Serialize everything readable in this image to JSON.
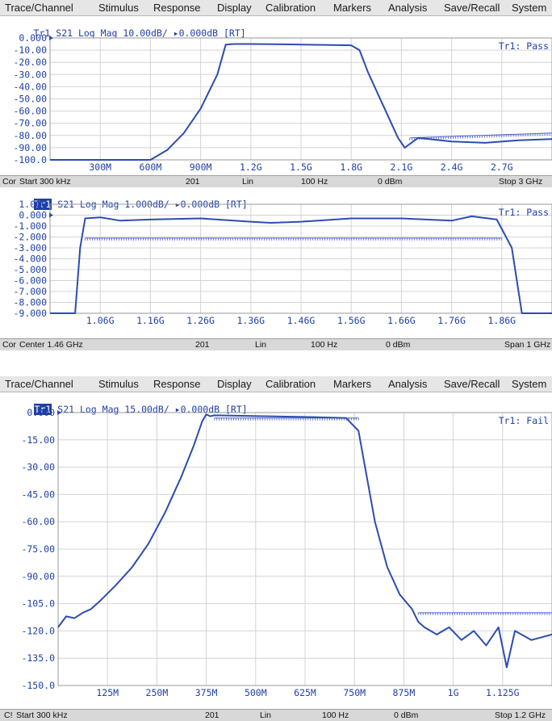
{
  "menu": [
    "Trace/Channel",
    "Stimulus",
    "Response",
    "Display",
    "Calibration",
    "Markers",
    "Analysis",
    "Save/Recall",
    "System"
  ],
  "colors": {
    "trace": "#2c4cb0",
    "limit": "#5060c8",
    "text": "#2040a8",
    "grid": "#d4d4d4",
    "status_bg": "#d8d8d8",
    "menu_bg": "#e6e6e6"
  },
  "screens": [
    {
      "menu": [
        "Trace/Channel",
        "Stimulus",
        "Response",
        "Display",
        "Calibration",
        "Markers",
        "Analysis",
        "Save/Recall",
        "System"
      ],
      "panels": [
        {
          "trace_id": "Tr1",
          "header": "S21 Log Mag 10.00dB/ ▸0.000dB [RT]",
          "result": "Tr1: Pass",
          "y_ticks": [
            "0.000",
            "-10.00",
            "-20.00",
            "-30.00",
            "-40.00",
            "-50.00",
            "-60.00",
            "-70.00",
            "-80.00",
            "-90.00",
            "-100.0"
          ],
          "x_ticks": [
            "300M",
            "600M",
            "900M",
            "1.2G",
            "1.5G",
            "1.8G",
            "2.1G",
            "2.4G",
            "2.7G"
          ],
          "status": {
            "cal": "Cor",
            "start": "Start 300 kHz",
            "points": "201",
            "sweep": "Lin",
            "ifbw": "100 Hz",
            "power": "0 dBm",
            "stop": "Stop 3 GHz"
          }
        },
        {
          "trace_id": "Tr1",
          "header": "S21 Log Mag 1.000dB/ ▸0.000dB [RT]",
          "result": "Tr1: Pass",
          "y_ticks": [
            "1.000",
            "0.000",
            "-1.000",
            "-2.000",
            "-3.000",
            "-4.000",
            "-5.000",
            "-6.000",
            "-7.000",
            "-8.000",
            "-9.000"
          ],
          "x_ticks": [
            "1.06G",
            "1.16G",
            "1.26G",
            "1.36G",
            "1.46G",
            "1.56G",
            "1.66G",
            "1.76G",
            "1.86G"
          ],
          "status": {
            "cal": "Cor",
            "start": "Center 1.46 GHz",
            "points": "201",
            "sweep": "Lin",
            "ifbw": "100 Hz",
            "power": "0 dBm",
            "stop": "Span 1 GHz"
          }
        }
      ]
    },
    {
      "menu": [
        "Trace/Channel",
        "Stimulus",
        "Response",
        "Display",
        "Calibration",
        "Markers",
        "Analysis",
        "Save/Recall",
        "System"
      ],
      "panels": [
        {
          "trace_id": "Tr1",
          "header": "S21 Log Mag 15.00dB/ ▸0.000dB [RT]",
          "result": "Tr1: Fail",
          "y_ticks": [
            "0.000",
            "-15.00",
            "-30.00",
            "-45.00",
            "-60.00",
            "-75.00",
            "-90.00",
            "-105.0",
            "-120.0",
            "-135.0",
            "-150.0"
          ],
          "x_ticks": [
            "125M",
            "250M",
            "375M",
            "500M",
            "625M",
            "750M",
            "875M",
            "1G",
            "1.125G"
          ],
          "status": {
            "cal": "C!",
            "start": "Start 300 kHz",
            "points": "201",
            "sweep": "Lin",
            "ifbw": "100 Hz",
            "power": "0 dBm",
            "stop": "Stop 1.2 GHz"
          }
        }
      ]
    }
  ],
  "chart_data": [
    {
      "type": "line",
      "series": [
        {
          "x_ghz": [
            0.0003,
            0.6,
            0.7,
            0.8,
            0.9,
            1.0,
            1.05,
            1.1,
            1.2,
            1.4,
            1.6,
            1.8,
            1.85,
            1.9,
            2.0,
            2.08,
            2.12,
            2.2,
            2.4,
            2.6,
            2.8,
            3.0
          ],
          "y_db": [
            -100,
            -100,
            -92,
            -78,
            -58,
            -30,
            -5.5,
            -5,
            -5,
            -5.2,
            -5.6,
            -6,
            -10,
            -28,
            -58,
            -82,
            -90,
            -82,
            -85,
            -86,
            -84,
            -83
          ]
        }
      ],
      "limit_line": {
        "x_ghz": [
          2.15,
          3.0
        ],
        "y_db": [
          -82,
          -78
        ]
      },
      "ylim": [
        -100,
        0
      ],
      "xlim_ghz": [
        0.0003,
        3.0
      ],
      "grid": true
    },
    {
      "type": "line",
      "series": [
        {
          "x_ghz": [
            0.96,
            1.01,
            1.02,
            1.03,
            1.06,
            1.1,
            1.16,
            1.26,
            1.36,
            1.4,
            1.46,
            1.56,
            1.66,
            1.76,
            1.8,
            1.85,
            1.88,
            1.9,
            1.96
          ],
          "y_db": [
            -9,
            -9,
            -3,
            -0.3,
            -0.2,
            -0.5,
            -0.4,
            -0.3,
            -0.6,
            -0.7,
            -0.6,
            -0.3,
            -0.3,
            -0.5,
            -0.1,
            -0.4,
            -3,
            -9,
            -9
          ]
        }
      ],
      "limit_line": {
        "x_ghz": [
          1.03,
          1.86
        ],
        "y_db": [
          -2.1,
          -2.1
        ]
      },
      "ylim": [
        -9,
        1
      ],
      "xlim_ghz": [
        0.96,
        1.96
      ],
      "grid": true
    },
    {
      "type": "line",
      "series": [
        {
          "x_mhz": [
            0.3,
            20,
            40,
            60,
            80,
            100,
            140,
            180,
            220,
            260,
            300,
            330,
            350,
            360,
            370,
            380,
            500,
            620,
            700,
            730,
            750,
            770,
            800,
            830,
            860,
            875,
            890,
            920,
            950,
            980,
            1010,
            1040,
            1070,
            1090,
            1110,
            1150,
            1200
          ],
          "y_db": [
            -118,
            -112,
            -113,
            -110,
            -108,
            -104,
            -95,
            -85,
            -72,
            -55,
            -35,
            -18,
            -5,
            -1,
            -2,
            -1.5,
            -2,
            -2.5,
            -3,
            -10,
            -35,
            -60,
            -85,
            -100,
            -108,
            -115,
            -118,
            -122,
            -118,
            -125,
            -120,
            -128,
            -118,
            -140,
            -120,
            -125,
            -122
          ]
        }
      ],
      "limit_lines": [
        {
          "x_mhz": [
            380,
            730
          ],
          "y_db": [
            -3,
            -3
          ]
        },
        {
          "x_mhz": [
            875,
            1200
          ],
          "y_db": [
            -110,
            -110
          ]
        }
      ],
      "ylim": [
        -150,
        0
      ],
      "xlim_mhz": [
        0.3,
        1200
      ],
      "grid": true
    }
  ]
}
